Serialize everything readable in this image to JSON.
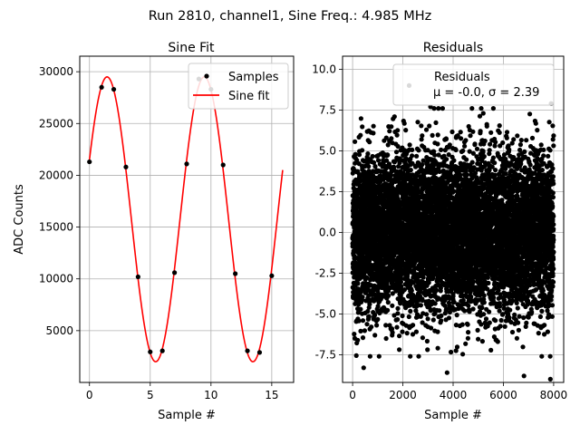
{
  "figure": {
    "suptitle": "Run 2810, channel1, Sine Freq.: 4.985 MHz"
  },
  "chart_data": [
    {
      "type": "line",
      "title": "Sine Fit",
      "xlabel": "Sample #",
      "ylabel": "ADC Counts",
      "xlim": [
        -0.8,
        16.8
      ],
      "ylim": [
        0,
        31500
      ],
      "xticks": [
        0,
        5,
        10,
        15
      ],
      "yticks": [
        5000,
        10000,
        15000,
        20000,
        25000,
        30000
      ],
      "grid": true,
      "legend": "upper right",
      "series": [
        {
          "name": "Samples",
          "kind": "scatter",
          "color": "#000000",
          "x": [
            0,
            1,
            2,
            3,
            4,
            5,
            6,
            7,
            8,
            9,
            10,
            11,
            12,
            13,
            14,
            15
          ],
          "y": [
            21300,
            28500,
            28300,
            20800,
            10200,
            2950,
            3050,
            10600,
            21100,
            29300,
            28300,
            21000,
            10500,
            3050,
            2900,
            10300
          ]
        },
        {
          "name": "Sine fit",
          "kind": "line",
          "color": "#ff0000",
          "model": {
            "amplitude": 13750,
            "offset": 15750,
            "period": 8.0,
            "peak_at": 1.45,
            "x_range": [
              0,
              15.9
            ]
          }
        }
      ]
    },
    {
      "type": "scatter",
      "title": "Residuals",
      "xlabel": "Sample #",
      "ylabel": "",
      "xlim": [
        -400,
        8400
      ],
      "ylim": [
        -9.2,
        10.8
      ],
      "xticks": [
        0,
        2000,
        4000,
        6000,
        8000
      ],
      "yticks": [
        -7.5,
        -5.0,
        -2.5,
        0.0,
        2.5,
        5.0,
        7.5,
        10.0
      ],
      "grid": true,
      "legend": "upper right",
      "series": [
        {
          "name": "Residuals",
          "legend_stats": "μ = -0.0, σ = 2.39",
          "color": "#000000",
          "x_range": [
            0,
            7999
          ],
          "n_points": 8000,
          "mean": 0.0,
          "std": 2.39,
          "outliers": [
            {
              "x": 2250,
              "y": 9.0
            },
            {
              "x": 7900,
              "y": 7.9
            },
            {
              "x": 440,
              "y": -8.3
            },
            {
              "x": 3760,
              "y": -8.6
            },
            {
              "x": 6820,
              "y": -8.8
            },
            {
              "x": 7870,
              "y": -9.0
            },
            {
              "x": 3100,
              "y": 7.7
            },
            {
              "x": 5200,
              "y": 7.3
            }
          ]
        }
      ]
    }
  ]
}
